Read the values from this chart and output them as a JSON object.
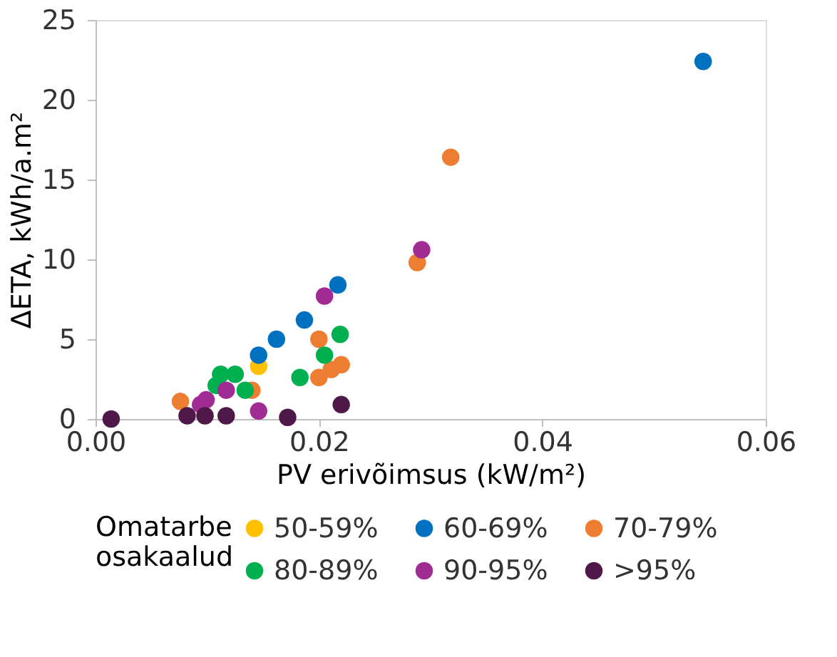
{
  "chart_data": {
    "type": "scatter",
    "xlabel": "PV erivõimsus (kW/m²)",
    "ylabel": "ΔETA, kWh/a.m²",
    "legend_title": "Omatarbe osakaalud",
    "xlim": [
      0,
      0.06
    ],
    "xticks": [
      {
        "value": 0,
        "label": "0.00"
      },
      {
        "value": 0.02,
        "label": "0.02"
      },
      {
        "value": 0.04,
        "label": "0.04"
      },
      {
        "value": 0.06,
        "label": "0.06"
      }
    ],
    "ylim": [
      0,
      25
    ],
    "yticks": [
      0,
      5,
      10,
      15,
      20,
      25
    ],
    "grid": false,
    "legend": "bottom",
    "marker": "circle",
    "series": [
      {
        "name": "50-59%",
        "color": "#ffc000",
        "x": [
          0.0146
        ],
        "values": [
          3.3
        ]
      },
      {
        "name": "60-69%",
        "color": "#0070c0",
        "x": [
          0.0544,
          0.0217,
          0.0187,
          0.0162,
          0.0146
        ],
        "values": [
          22.4,
          8.4,
          6.2,
          5.0,
          4.0
        ]
      },
      {
        "name": "70-79%",
        "color": "#ed7d31",
        "x": [
          0.0318,
          0.0288,
          0.02,
          0.022,
          0.0211,
          0.02,
          0.0076,
          0.014
        ],
        "values": [
          16.4,
          9.8,
          5.0,
          3.4,
          3.1,
          2.6,
          1.1,
          1.8
        ]
      },
      {
        "name": "80-89%",
        "color": "#00b050",
        "x": [
          0.0219,
          0.0205,
          0.0183,
          0.0112,
          0.0125,
          0.0108,
          0.0134
        ],
        "values": [
          5.3,
          4.0,
          2.6,
          2.8,
          2.8,
          2.1,
          1.8
        ]
      },
      {
        "name": "90-95%",
        "color": "#a02b93",
        "x": [
          0.0292,
          0.0205,
          0.0094,
          0.0099,
          0.0117,
          0.0146
        ],
        "values": [
          10.6,
          7.7,
          0.9,
          1.2,
          1.8,
          0.5
        ]
      },
      {
        "name": ">95%",
        "color": "#4e1848",
        "x": [
          0.0014,
          0.0082,
          0.0098,
          0.0117,
          0.0172,
          0.022
        ],
        "values": [
          0.0,
          0.2,
          0.2,
          0.2,
          0.1,
          0.9
        ]
      }
    ]
  }
}
